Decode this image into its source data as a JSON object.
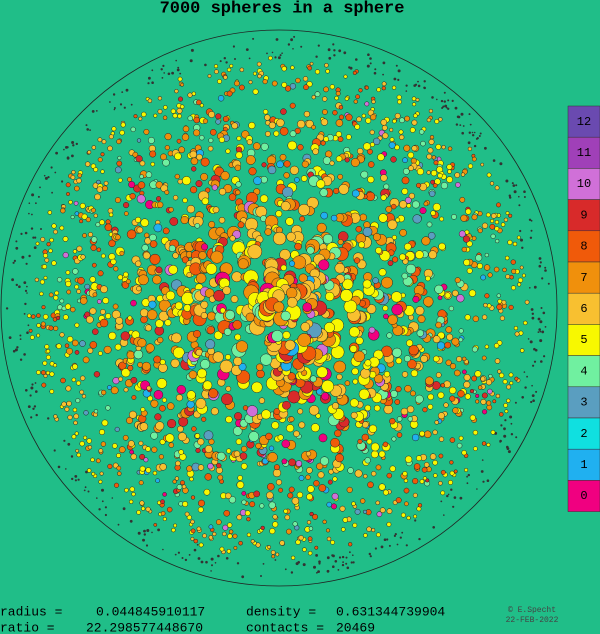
{
  "title": "7000 spheres in a sphere",
  "legend": [
    {
      "label": "12",
      "color": "#6a4ab0"
    },
    {
      "label": "11",
      "color": "#a040b8"
    },
    {
      "label": "10",
      "color": "#d070d8"
    },
    {
      "label": "9",
      "color": "#d82a2a"
    },
    {
      "label": "8",
      "color": "#f05a0a"
    },
    {
      "label": "7",
      "color": "#f0900c"
    },
    {
      "label": "6",
      "color": "#f8c030"
    },
    {
      "label": "5",
      "color": "#f8f800"
    },
    {
      "label": "4",
      "color": "#70f0a0"
    },
    {
      "label": "3",
      "color": "#5a9ec0"
    },
    {
      "label": "2",
      "color": "#10e0e0"
    },
    {
      "label": "1",
      "color": "#20b0f0"
    },
    {
      "label": "0",
      "color": "#f00080"
    }
  ],
  "stats": [
    {
      "label": "radius =",
      "value": "0.044845910117"
    },
    {
      "label": "density  =",
      "value": "0.631344739904"
    },
    {
      "label": "ratio  =",
      "value": "22.298577448670"
    },
    {
      "label": "contacts =",
      "value": "20469"
    }
  ],
  "credit": "© E.Specht",
  "date": "22-FEB-2022"
}
